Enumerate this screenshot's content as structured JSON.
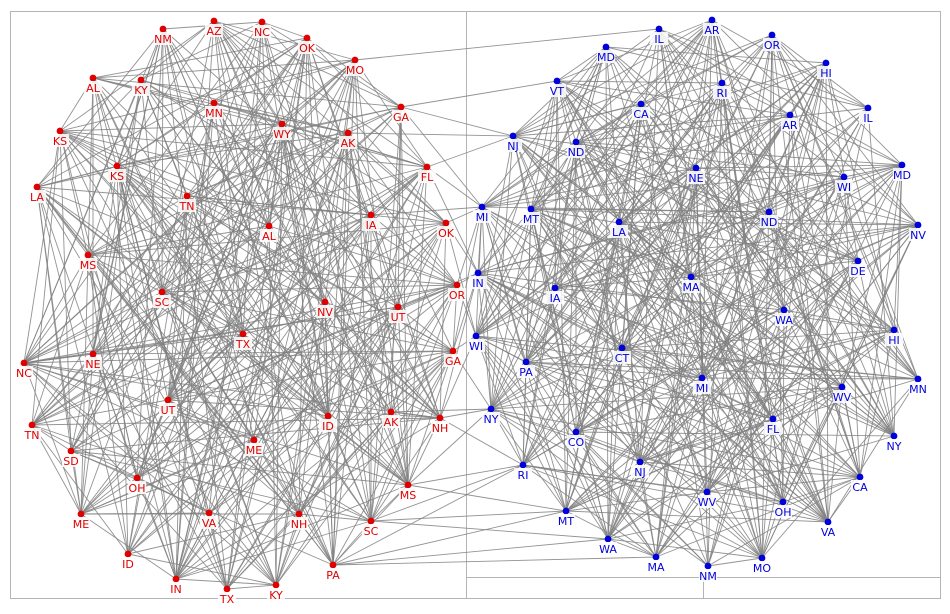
{
  "colors": {
    "left_cluster": "#e00000",
    "right_cluster": "#0000dd",
    "edge": "#808080",
    "frame": "#b4b4b4",
    "label_bg": "#ffffff"
  },
  "left_cluster": {
    "nodes": [
      {
        "label": "NM"
      },
      {
        "label": "AZ"
      },
      {
        "label": "NC"
      },
      {
        "label": "OK"
      },
      {
        "label": "MO"
      },
      {
        "label": "AL"
      },
      {
        "label": "KY"
      },
      {
        "label": "MN"
      },
      {
        "label": "WY"
      },
      {
        "label": "AK"
      },
      {
        "label": "GA"
      },
      {
        "label": "KS"
      },
      {
        "label": "KS"
      },
      {
        "label": "FL"
      },
      {
        "label": "LA"
      },
      {
        "label": "TN"
      },
      {
        "label": "AL"
      },
      {
        "label": "IA"
      },
      {
        "label": "OK"
      },
      {
        "label": "MS"
      },
      {
        "label": "OR"
      },
      {
        "label": "SC"
      },
      {
        "label": "NV"
      },
      {
        "label": "UT"
      },
      {
        "label": "TX"
      },
      {
        "label": "NC"
      },
      {
        "label": "NE"
      },
      {
        "label": "GA"
      },
      {
        "label": "UT"
      },
      {
        "label": "ID"
      },
      {
        "label": "AK"
      },
      {
        "label": "NH"
      },
      {
        "label": "TN"
      },
      {
        "label": "ME"
      },
      {
        "label": "SD"
      },
      {
        "label": "OH"
      },
      {
        "label": "MS"
      },
      {
        "label": "ME"
      },
      {
        "label": "VA"
      },
      {
        "label": "NH"
      },
      {
        "label": "SC"
      },
      {
        "label": "ID"
      },
      {
        "label": "PA"
      },
      {
        "label": "IN"
      },
      {
        "label": "TX"
      },
      {
        "label": "KY"
      }
    ]
  },
  "right_cluster": {
    "nodes": [
      {
        "label": "AR"
      },
      {
        "label": "IL"
      },
      {
        "label": "OR"
      },
      {
        "label": "MD"
      },
      {
        "label": "HI"
      },
      {
        "label": "VT"
      },
      {
        "label": "RI"
      },
      {
        "label": "CA"
      },
      {
        "label": "IL"
      },
      {
        "label": "AR"
      },
      {
        "label": "NJ"
      },
      {
        "label": "ND"
      },
      {
        "label": "NE"
      },
      {
        "label": "MD"
      },
      {
        "label": "WI"
      },
      {
        "label": "MI"
      },
      {
        "label": "MT"
      },
      {
        "label": "LA"
      },
      {
        "label": "ND"
      },
      {
        "label": "NV"
      },
      {
        "label": "IN"
      },
      {
        "label": "IA"
      },
      {
        "label": "MA"
      },
      {
        "label": "DE"
      },
      {
        "label": "WA"
      },
      {
        "label": "WI"
      },
      {
        "label": "HI"
      },
      {
        "label": "PA"
      },
      {
        "label": "CT"
      },
      {
        "label": "MN"
      },
      {
        "label": "MI"
      },
      {
        "label": "WV"
      },
      {
        "label": "NY"
      },
      {
        "label": "CO"
      },
      {
        "label": "FL"
      },
      {
        "label": "NY"
      },
      {
        "label": "RI"
      },
      {
        "label": "NJ"
      },
      {
        "label": "CA"
      },
      {
        "label": "MT"
      },
      {
        "label": "WV"
      },
      {
        "label": "OH"
      },
      {
        "label": "VA"
      },
      {
        "label": "WA"
      },
      {
        "label": "MA"
      },
      {
        "label": "NM"
      },
      {
        "label": "MO"
      }
    ]
  }
}
